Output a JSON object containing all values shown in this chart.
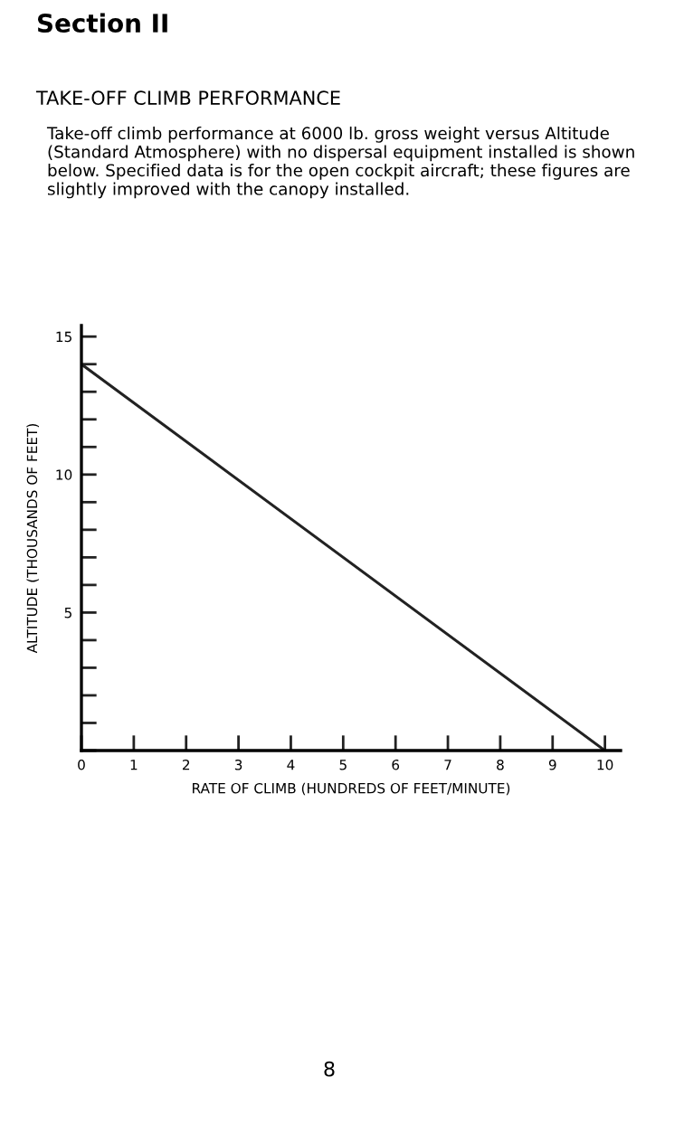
{
  "chart_data": {
    "type": "line",
    "title": "TAKE-OFF CLIMB PERFORMANCE",
    "subtitle": "Take-off climb performance at 6000 lb. gross weight versus Altitude (Standard Atmosphere) with no dispersal equipment installed is shown below. Specified data is for the open cockpit aircraft; these figures are slightly improved with the canopy installed.",
    "xlabel": "RATE OF CLIMB (HUNDREDS OF FEET/MINUTE)",
    "ylabel": "ALTITUDE (THOUSANDS OF FEET)",
    "annotations": [
      "Section II",
      "8"
    ],
    "x": [
      0,
      10
    ],
    "series": [
      {
        "color": "#222222",
        "values": [
          14,
          0
        ]
      }
    ],
    "xlim": [
      0,
      10.3
    ],
    "ylim": [
      0,
      15.4
    ],
    "xticks": [
      0,
      1,
      2,
      3,
      4,
      5,
      6,
      7,
      8,
      9,
      10
    ],
    "yticks": [
      {
        "value": 0,
        "label": null
      },
      {
        "value": 1,
        "label": null
      },
      {
        "value": 2,
        "label": null
      },
      {
        "value": 3,
        "label": null
      },
      {
        "value": 4,
        "label": null
      },
      5,
      {
        "value": 6,
        "label": null
      },
      {
        "value": 7,
        "label": null
      },
      {
        "value": 8,
        "label": null
      },
      {
        "value": 9,
        "label": null
      },
      10,
      {
        "value": 11,
        "label": null
      },
      {
        "value": 12,
        "label": null
      },
      {
        "value": 13,
        "label": null
      },
      {
        "value": 14,
        "label": null
      },
      15
    ],
    "grid": false,
    "legend": false,
    "marker": "none",
    "line_style": "solid"
  }
}
